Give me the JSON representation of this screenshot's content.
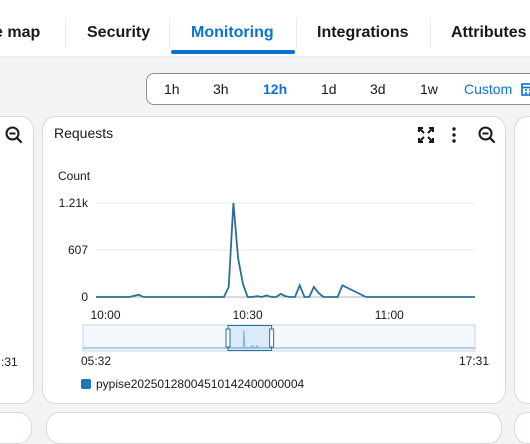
{
  "tabs": [
    "e map",
    "Security",
    "Monitoring",
    "Integrations",
    "Attributes"
  ],
  "active_tab": "Monitoring",
  "time_range": {
    "options": [
      "1h",
      "3h",
      "12h",
      "1d",
      "3d",
      "1w",
      "Custom"
    ],
    "selected": "12h"
  },
  "left_card": {
    "time_label": ":31",
    "icon": "zoom-out-icon"
  },
  "main_card": {
    "title": "Requests",
    "icons": [
      "expand-icon",
      "more-vertical-icon",
      "zoom-out-icon"
    ],
    "unit": "Count",
    "yticks": [
      "1.21k",
      "607",
      "0"
    ],
    "xticks": [
      "10:00",
      "10:30",
      "11:00"
    ],
    "timeline_start": "05:32",
    "timeline_end": "17:31",
    "legend": "pypise20250128004510142400000004"
  },
  "colors": {
    "accent": "#0972d3",
    "series": "#1f77b4",
    "series_line": "#2a6f97"
  },
  "chart_data": {
    "type": "line",
    "title": "Requests",
    "ylabel": "Count",
    "xlabel": "",
    "x": [
      "09:58",
      "10:00",
      "10:05",
      "10:07",
      "10:08",
      "10:10",
      "10:15",
      "10:20",
      "10:25",
      "10:26",
      "10:27",
      "10:28",
      "10:29",
      "10:30",
      "10:31",
      "10:32",
      "10:33",
      "10:34",
      "10:35",
      "10:36",
      "10:37",
      "10:38",
      "10:39",
      "10:40",
      "10:41",
      "10:42",
      "10:43",
      "10:44",
      "10:45",
      "10:46",
      "10:47",
      "10:48",
      "10:49",
      "10:50",
      "10:55",
      "11:00",
      "11:05",
      "11:10",
      "11:15",
      "11:18"
    ],
    "series": [
      {
        "name": "pypise20250128004510142400000004",
        "values": [
          0,
          0,
          0,
          30,
          0,
          0,
          0,
          0,
          0,
          130,
          1210,
          500,
          170,
          0,
          0,
          10,
          0,
          20,
          0,
          0,
          40,
          10,
          0,
          0,
          150,
          0,
          0,
          130,
          50,
          0,
          0,
          0,
          0,
          150,
          0,
          0,
          0,
          0,
          0,
          0
        ]
      }
    ],
    "ylim": [
      0,
      1210
    ],
    "yticks": [
      "0",
      "607",
      "1.21k"
    ],
    "xticks": [
      "10:00",
      "10:30",
      "11:00"
    ],
    "grid": true,
    "legend": "bottom-left"
  }
}
